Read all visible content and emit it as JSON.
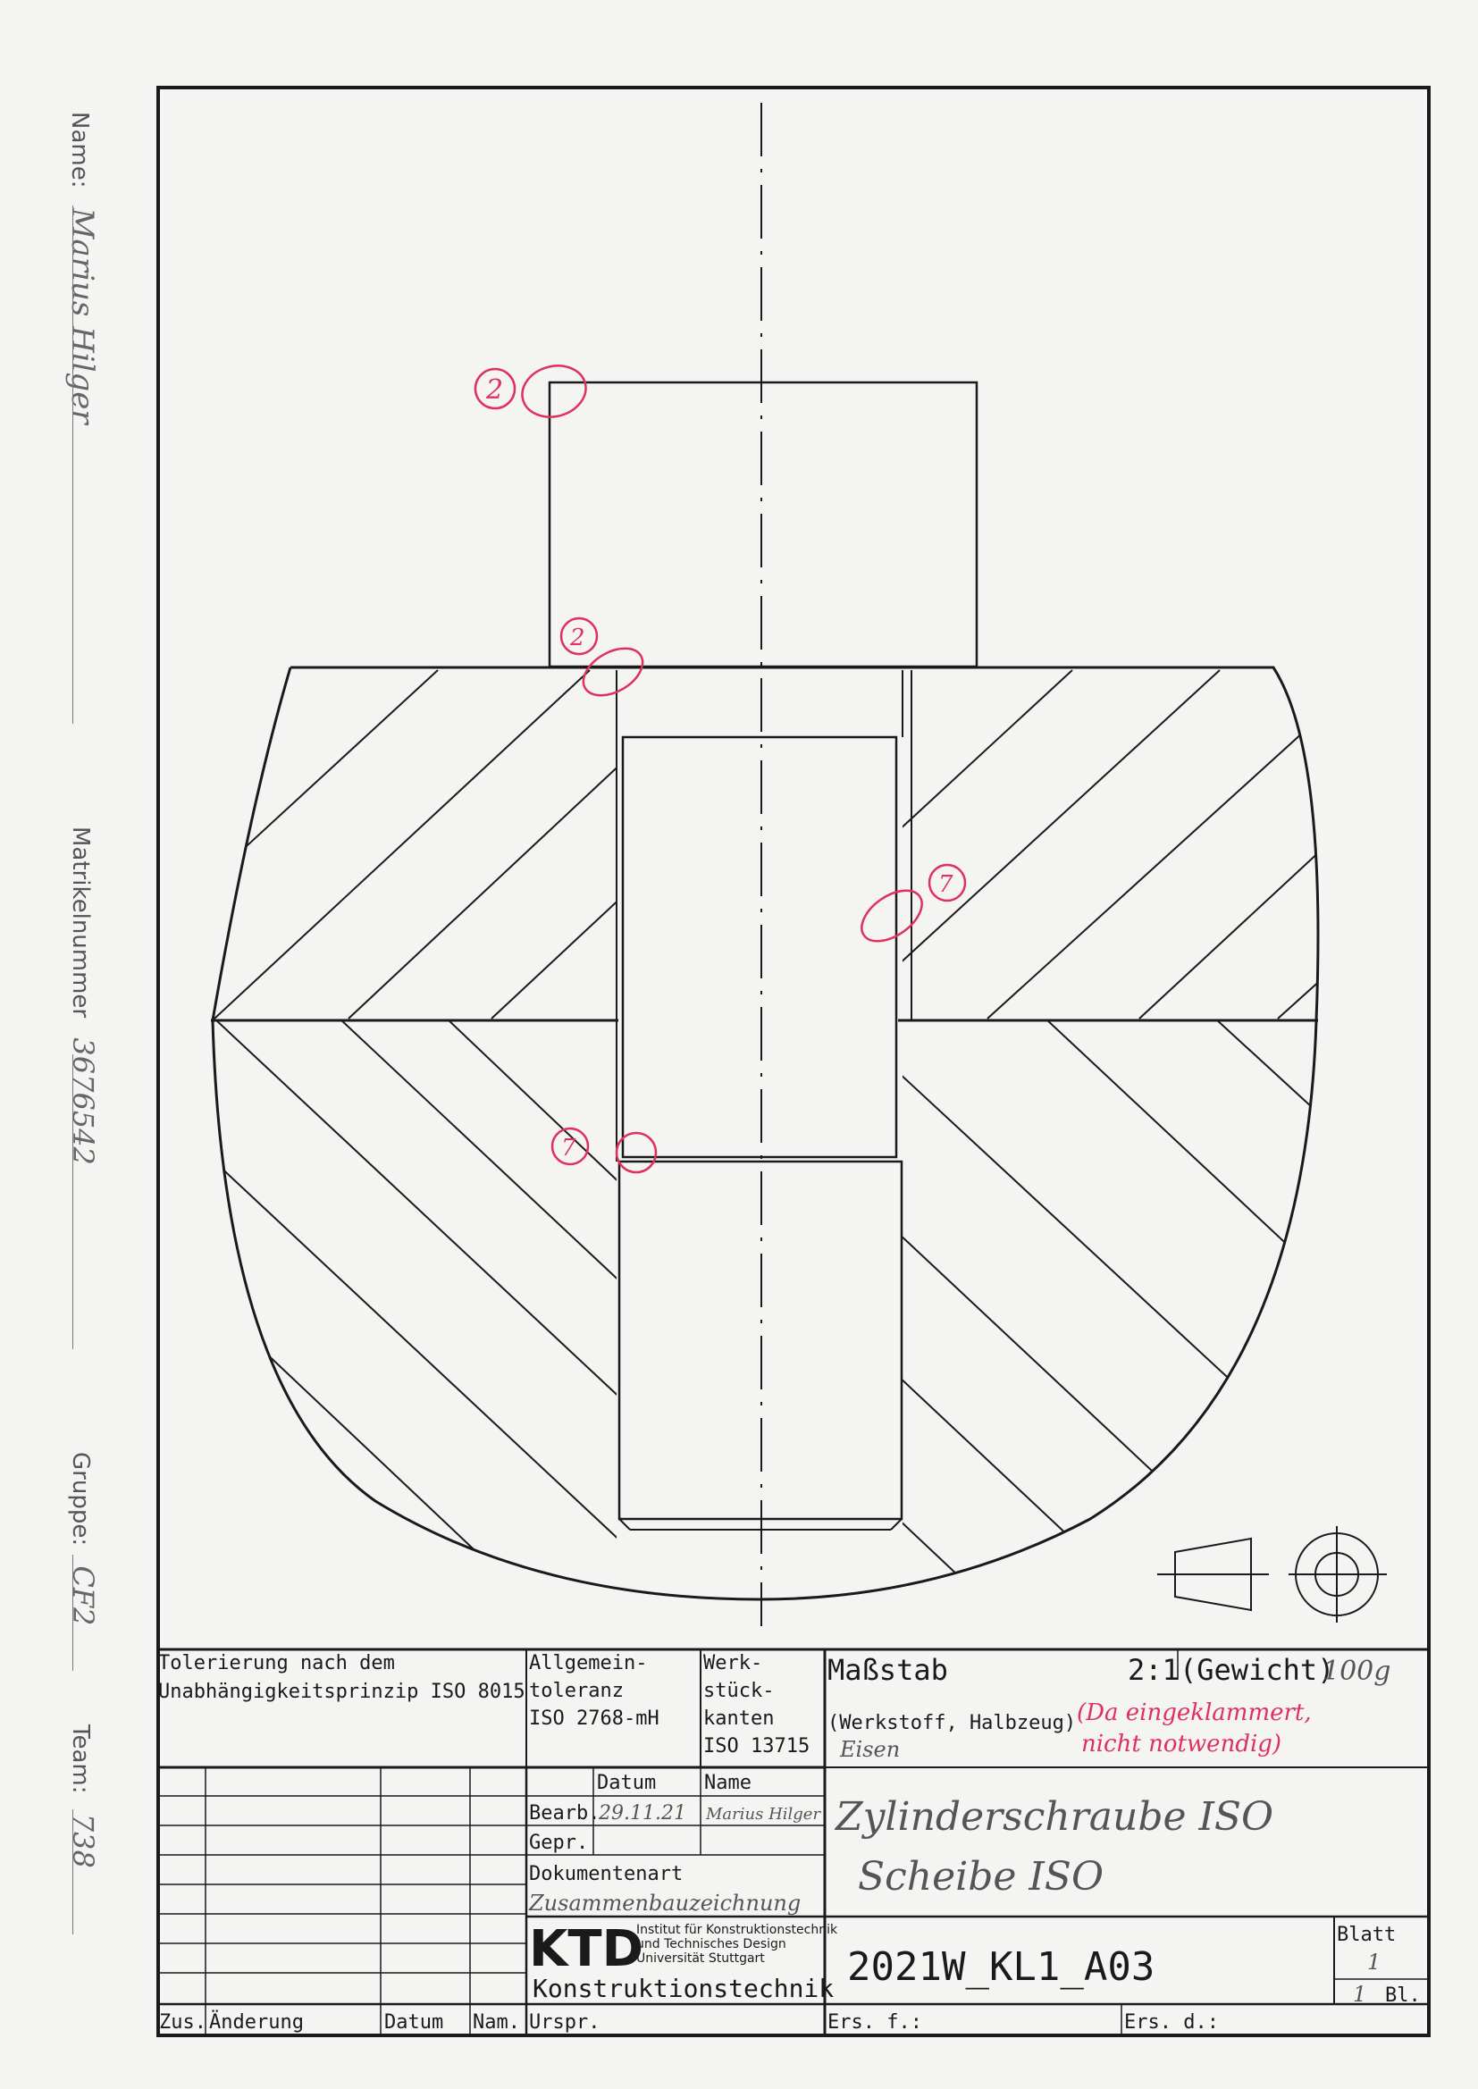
{
  "side": {
    "name_label": "Name:",
    "name_value": "Marius Hilger",
    "matrikel_label": "Matrikelnummer",
    "matrikel_value": "3676542",
    "gruppe_label": "Gruppe:",
    "gruppe_value": "CF2",
    "team_label": "Team:",
    "team_value": "738"
  },
  "annotations": {
    "mark_top": "2",
    "mark_surface": "2",
    "mark_right": "7",
    "mark_lower": "7"
  },
  "title_block": {
    "tolerance_line1": "Tolerierung nach dem",
    "tolerance_line2": "Unabhängigkeitsprinzip ISO 8015",
    "general_tol_line1": "Allgemein-",
    "general_tol_line2": "toleranz",
    "general_tol_line3": "ISO 2768-mH",
    "edges_line1": "Werk-",
    "edges_line2": "stück-",
    "edges_line3": "kanten",
    "edges_line4": "ISO 13715",
    "scale_label": "Maßstab",
    "scale_value": "2:1",
    "weight_label": "(Gewicht)",
    "weight_value": "100g",
    "material_label": "(Werkstoff, Halbzeug)",
    "material_value": "Eisen",
    "material_note_line1": "(Da eingeklammert,",
    "material_note_line2": "nicht notwendig)",
    "date_header": "Datum",
    "name_header": "Name",
    "bearb_label": "Bearb.",
    "bearb_date": "29.11.21",
    "bearb_name": "Marius Hilger",
    "gepr_label": "Gepr.",
    "doc_type_label": "Dokumentenart",
    "doc_type_value": "Zusammenbauzeichnung",
    "title_line1": "Zylinderschraube ISO",
    "title_line2": "Scheibe ISO",
    "logo_text": "KTD",
    "institute_line1": "Institut für Konstruktionstechnik",
    "institute_line2": "und Technisches Design",
    "institute_line3": "Universität Stuttgart",
    "department": "Konstruktionstechnik",
    "drawing_number": "2021W_KL1_A03",
    "sheet_label": "Blatt",
    "sheet_value": "1",
    "sheets_total": "1",
    "sheets_suffix": "Bl.",
    "zus_label": "Zus.",
    "change_label": "Änderung",
    "change_date_label": "Datum",
    "change_name_label": "Nam.",
    "origin_label": "Urspr.",
    "replaces_label": "Ers. f.:",
    "replaced_by_label": "Ers. d.:"
  },
  "colors": {
    "line": "#1a1a1a",
    "correction": "#e0305e",
    "paper": "#f4f4f2"
  }
}
